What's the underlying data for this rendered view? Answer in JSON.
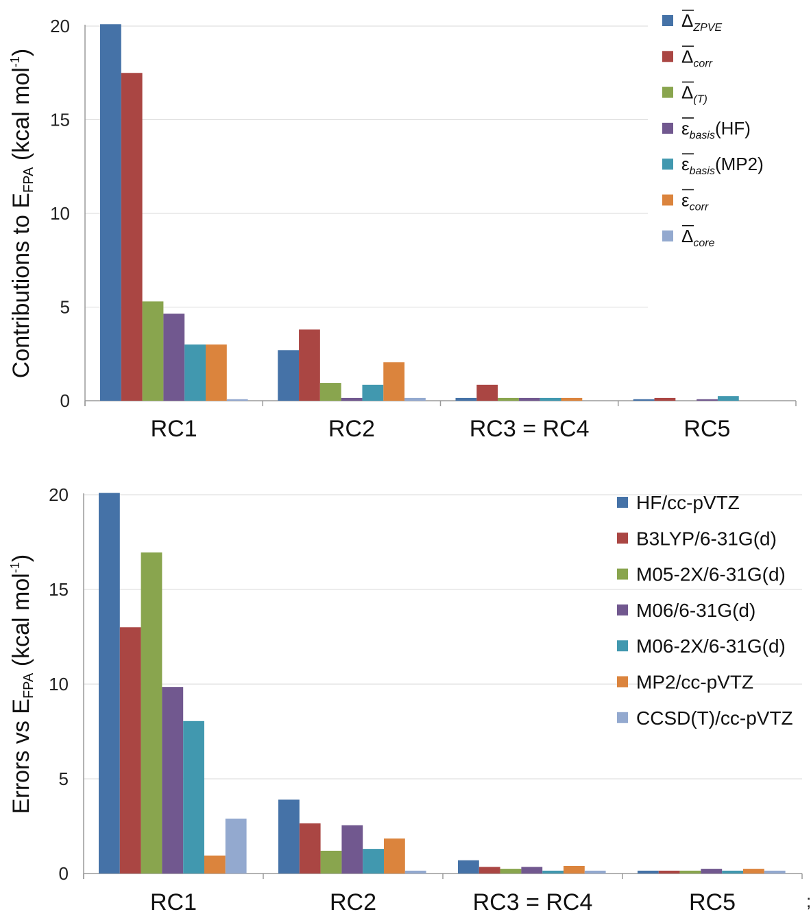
{
  "chart_data": [
    {
      "type": "bar",
      "categories": [
        "RC1",
        "RC2",
        "RC3 = RC4",
        "RC5"
      ],
      "ylabel": {
        "prefix": "Contributions to E",
        "sub": "FPA",
        "mid": " (kcal mol",
        "sup": "-1",
        "suffix": ")"
      },
      "ylim": [
        0,
        20
      ],
      "yticks": [
        "0",
        "5",
        "10",
        "15",
        "20"
      ],
      "grid": true,
      "legend": "top-right",
      "series": [
        {
          "name": "Δ",
          "name_sub": "ZPVE",
          "overline": true,
          "color": "#4572a7",
          "values": [
            20.1,
            2.7,
            0.15,
            0.08
          ]
        },
        {
          "name": "Δ",
          "name_sub": "corr",
          "overline": true,
          "color": "#aa4643",
          "values": [
            17.5,
            3.8,
            0.85,
            0.15
          ]
        },
        {
          "name": "Δ",
          "name_sub": "(T)",
          "overline": true,
          "color": "#89a54e",
          "values": [
            5.3,
            0.95,
            0.15,
            0.0
          ]
        },
        {
          "name": "ε",
          "name_sub": "basis",
          "name_suffix": "(HF)",
          "overline": true,
          "color": "#71588f",
          "values": [
            4.65,
            0.15,
            0.15,
            0.08
          ]
        },
        {
          "name": "ε",
          "name_sub": "basis",
          "name_suffix": "(MP2)",
          "overline": true,
          "color": "#4198af",
          "values": [
            3.0,
            0.85,
            0.15,
            0.25
          ]
        },
        {
          "name": "ε",
          "name_sub": "corr",
          "overline": true,
          "color": "#db843d",
          "values": [
            3.0,
            2.05,
            0.15,
            0.0
          ]
        },
        {
          "name": "Δ",
          "name_sub": "core",
          "overline": true,
          "color": "#93a9cf",
          "values": [
            0.08,
            0.15,
            0.0,
            0.0
          ]
        }
      ]
    },
    {
      "type": "bar",
      "categories": [
        "RC1",
        "RC2",
        "RC3 = RC4",
        "RC5"
      ],
      "ylabel": {
        "prefix": "Errors vs E",
        "sub": "FPA",
        "mid": " (kcal mol",
        "sup": "-1",
        "suffix": ")"
      },
      "ylim": [
        0,
        20
      ],
      "yticks": [
        "0",
        "5",
        "10",
        "15",
        "20"
      ],
      "grid": true,
      "legend": "top-right",
      "series": [
        {
          "name": "HF/cc-pVTZ",
          "color": "#4572a7",
          "values": [
            20.1,
            3.9,
            0.7,
            0.15
          ]
        },
        {
          "name": "B3LYP/6-31G(d)",
          "color": "#aa4643",
          "values": [
            13.0,
            2.65,
            0.35,
            0.15
          ]
        },
        {
          "name": "M05-2X/6-31G(d)",
          "color": "#89a54e",
          "values": [
            16.95,
            1.2,
            0.25,
            0.15
          ]
        },
        {
          "name": "M06/6-31G(d)",
          "color": "#71588f",
          "values": [
            9.85,
            2.55,
            0.35,
            0.25
          ]
        },
        {
          "name": "M06-2X/6-31G(d)",
          "color": "#4198af",
          "values": [
            8.05,
            1.3,
            0.15,
            0.15
          ]
        },
        {
          "name": "MP2/cc-pVTZ",
          "color": "#db843d",
          "values": [
            0.95,
            1.85,
            0.4,
            0.25
          ]
        },
        {
          "name": "CCSD(T)/cc-pVTZ",
          "color": "#93a9cf",
          "values": [
            2.9,
            0.15,
            0.15,
            0.15
          ]
        }
      ]
    }
  ],
  "footer_mark": ";"
}
